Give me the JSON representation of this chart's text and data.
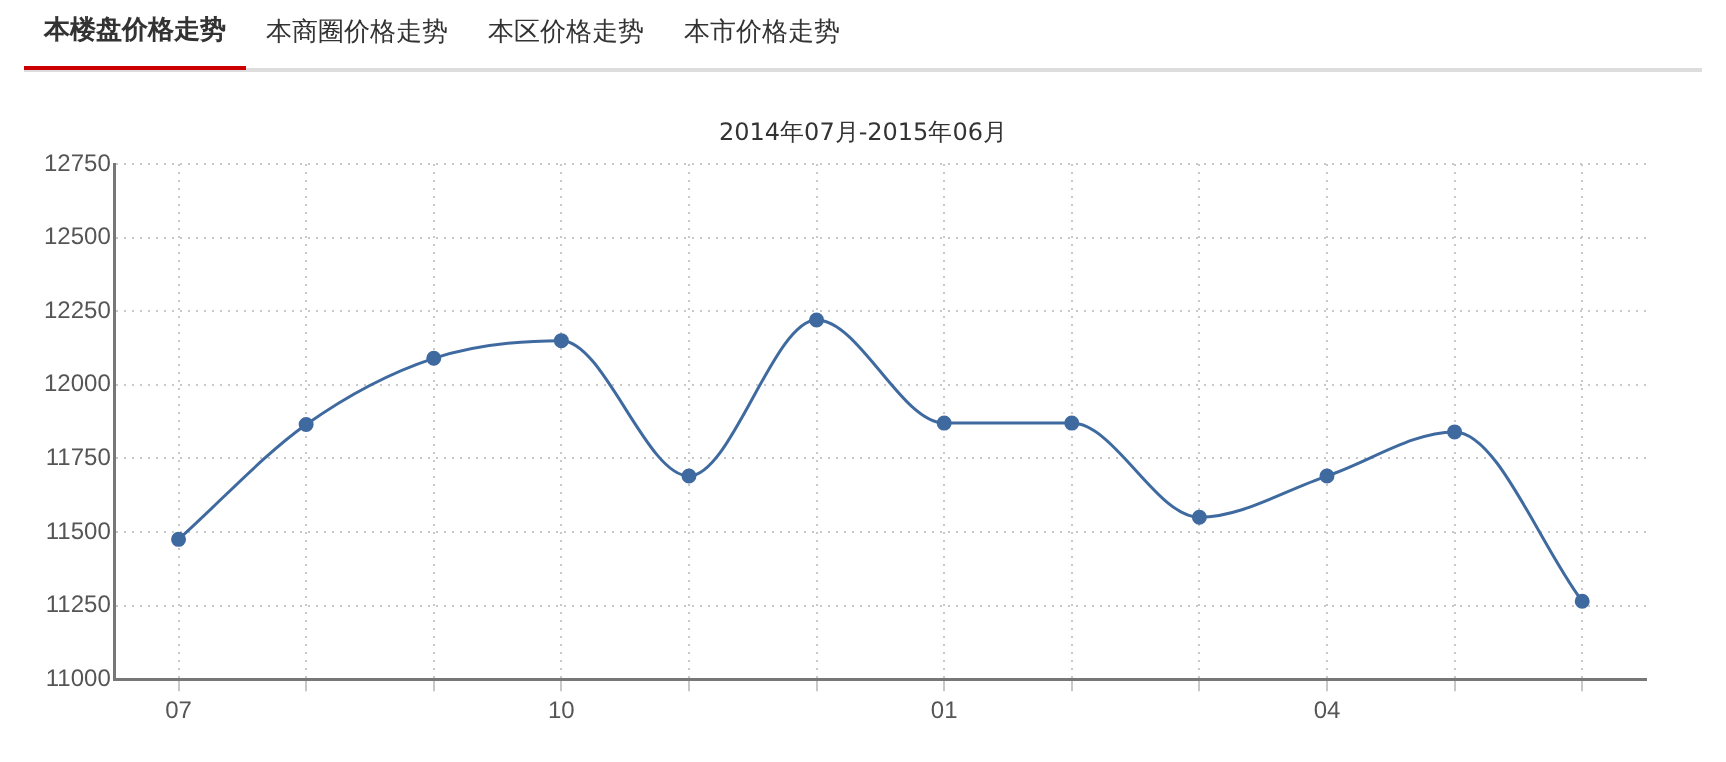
{
  "chart_data": {
    "type": "line",
    "title": "2014年07月-2015年06月",
    "annotations": [
      "本楼盘价格走势",
      "本商圈价格走势",
      "本区价格走势",
      "本市价格走势"
    ],
    "categories": [
      "07",
      null,
      null,
      "10",
      null,
      null,
      "01",
      null,
      null,
      "04",
      null,
      null
    ],
    "series": [
      {
        "color": "#3f6aa0",
        "values": [
          11475,
          11865,
          12090,
          12150,
          11690,
          12220,
          11870,
          11870,
          11550,
          11690,
          11840,
          11265
        ]
      }
    ],
    "ylim": [
      11000,
      12750
    ],
    "yticks": [
      11000,
      11250,
      11500,
      11750,
      12000,
      12250,
      12500,
      12750
    ],
    "grid": true,
    "legend": false,
    "marker": "circle",
    "line_style": "solid"
  }
}
